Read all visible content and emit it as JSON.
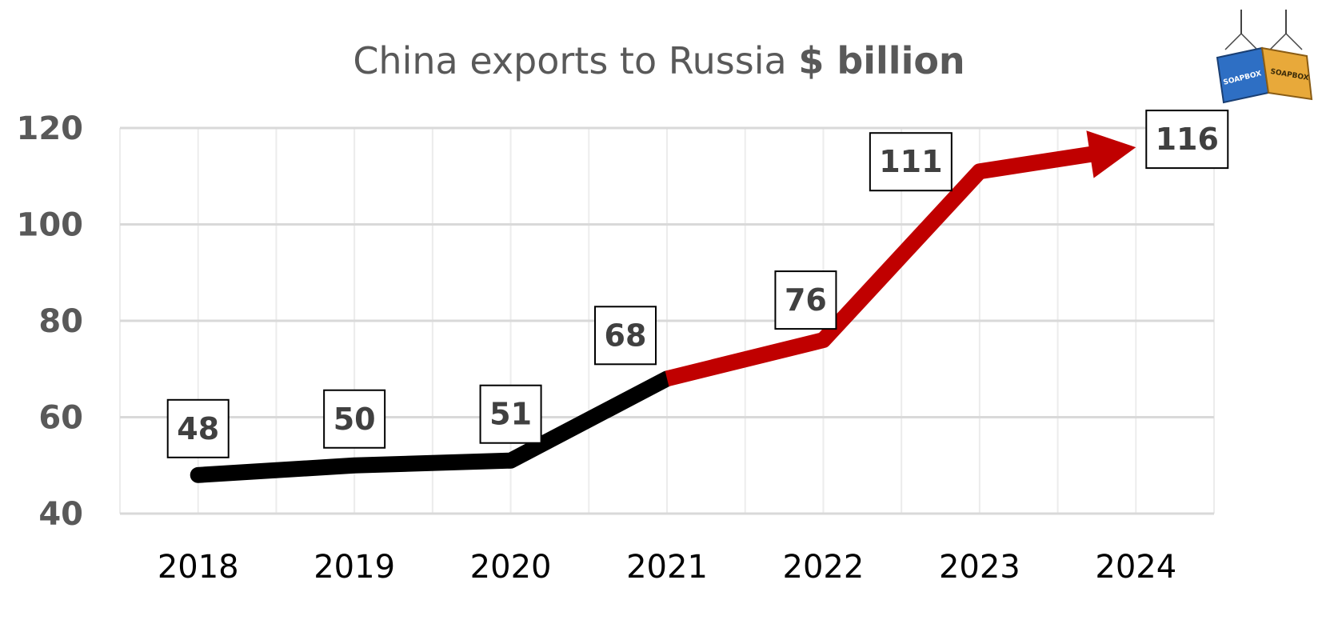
{
  "chart_data": {
    "type": "line",
    "title": "China exports to Russia",
    "title_unit": "$ billion",
    "xlabel": "",
    "ylabel": "",
    "categories": [
      "2018",
      "2019",
      "2020",
      "2021",
      "2022",
      "2023",
      "2024"
    ],
    "values": [
      48,
      50,
      51,
      68,
      76,
      111,
      116
    ],
    "data_labels": [
      "48",
      "50",
      "51",
      "68",
      "76",
      "111",
      "116"
    ],
    "y_ticks": [
      40,
      60,
      80,
      100,
      120
    ],
    "y_tick_labels": [
      "40",
      "60",
      "80",
      "100",
      "120"
    ],
    "ylim": [
      40,
      120
    ],
    "grid": true,
    "segments": [
      {
        "from": "2018",
        "to": "2021",
        "color": "#000000"
      },
      {
        "from": "2021",
        "to": "2024",
        "color": "#c00000",
        "end_arrow": true
      }
    ]
  },
  "logo": {
    "icon": "shipping-containers-icon",
    "text": "SOAPBOX"
  }
}
